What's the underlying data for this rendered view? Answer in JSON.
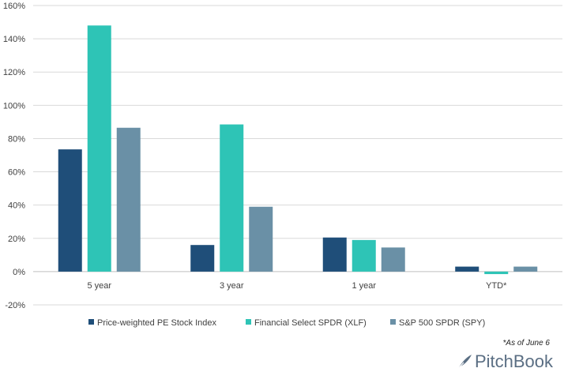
{
  "chart_data": {
    "type": "bar",
    "categories": [
      "5 year",
      "3 year",
      "1 year",
      "YTD*"
    ],
    "series": [
      {
        "name": "Price-weighted PE Stock Index",
        "color": "#1f4e79",
        "values": [
          73.5,
          16,
          20.5,
          3
        ]
      },
      {
        "name": "Financial Select SPDR (XLF)",
        "color": "#2ec4b6",
        "values": [
          148,
          88.5,
          19,
          -1.5
        ]
      },
      {
        "name": "S&P 500 SPDR (SPY)",
        "color": "#6a90a6",
        "values": [
          86.5,
          39,
          14.5,
          3
        ]
      }
    ],
    "ylim": [
      -20,
      160
    ],
    "yticks": [
      -20,
      0,
      20,
      40,
      60,
      80,
      100,
      120,
      140,
      160
    ],
    "ytick_suffix": "%",
    "grid": true,
    "legend": "bottom"
  },
  "footnote": "*As of June 6",
  "brand": {
    "name": "PitchBook",
    "icon": "quill-icon",
    "color": "#5a6e83"
  }
}
